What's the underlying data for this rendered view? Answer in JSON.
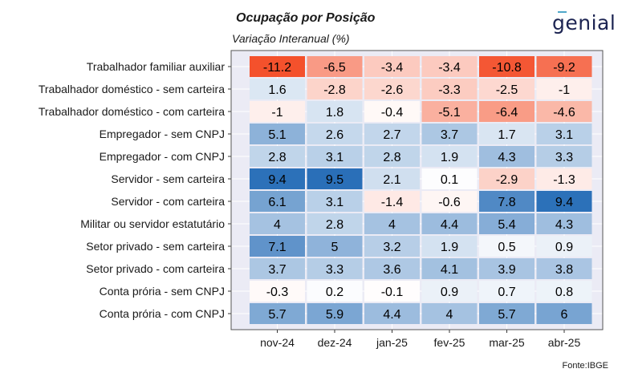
{
  "title": "Ocupação por Posição",
  "subtitle": "Variação Interanual (%)",
  "logo_text": "genial",
  "source": "Fonte:IBGE",
  "colors": {
    "negative_max": "#f4512c",
    "neutral": "#ffffff",
    "positive_max": "#2a6fb8",
    "panel_background": "#ebebf5",
    "grid": "#ffffff"
  },
  "chart_data": {
    "type": "heatmap",
    "title": "Ocupação por Posição",
    "subtitle": "Variação Interanual (%)",
    "x": [
      "nov-24",
      "dez-24",
      "jan-25",
      "fev-25",
      "mar-25",
      "abr-25"
    ],
    "y": [
      "Trabalhador familiar auxiliar",
      "Trabalhador doméstico - sem carteira",
      "Trabalhador doméstico - com carteira",
      "Empregador - sem CNPJ",
      "Empregador - com CNPJ",
      "Servidor - sem carteira",
      "Servidor - com carteira",
      "Militar ou servidor estatutário",
      "Setor privado - sem carteira",
      "Setor privado - com carteira",
      "Conta prória - sem CNPJ",
      "Conta prória - com CNPJ"
    ],
    "values": [
      [
        -11.2,
        -6.5,
        -3.4,
        -3.4,
        -10.8,
        -9.2
      ],
      [
        1.6,
        -2.8,
        -2.6,
        -3.3,
        -2.5,
        -1
      ],
      [
        -1,
        1.8,
        -0.4,
        -5.1,
        -6.4,
        -4.6
      ],
      [
        5.1,
        2.6,
        2.7,
        3.7,
        1.7,
        3.1
      ],
      [
        2.8,
        3.1,
        2.8,
        1.9,
        4.3,
        3.3
      ],
      [
        9.4,
        9.5,
        2.1,
        0.1,
        -2.9,
        -1.3
      ],
      [
        6.1,
        3.1,
        -1.4,
        -0.6,
        7.8,
        9.4
      ],
      [
        4,
        2.8,
        4,
        4.4,
        5.4,
        4.3
      ],
      [
        7.1,
        5,
        3.2,
        1.9,
        0.5,
        0.9
      ],
      [
        3.7,
        3.3,
        3.6,
        4.1,
        3.9,
        3.8
      ],
      [
        -0.3,
        0.2,
        -0.1,
        0.9,
        0.7,
        0.8
      ],
      [
        5.7,
        5.9,
        4.4,
        4,
        5.7,
        6
      ]
    ],
    "color_scale": {
      "min": -11.2,
      "mid": 0,
      "max": 9.5
    },
    "grid": true
  }
}
